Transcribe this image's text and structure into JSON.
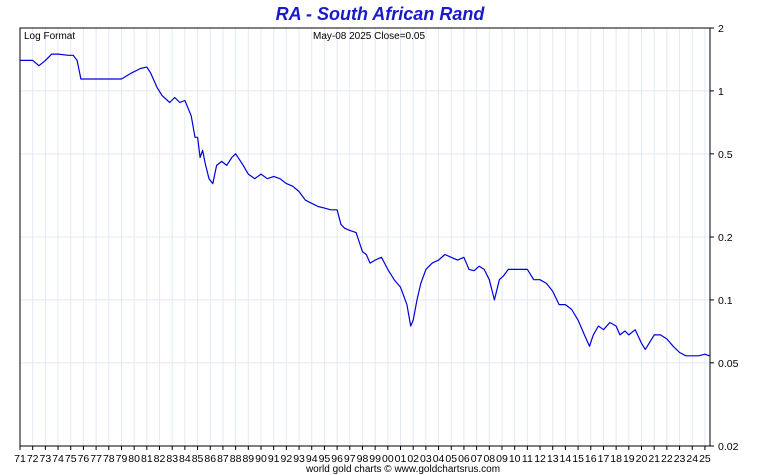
{
  "chart_data": {
    "type": "line",
    "title": "RA  -  South African Rand",
    "scale_label": "Log Format",
    "last_value_label": "May-08  2025   Close=0.05",
    "footer": "world gold charts © www.goldchartsrus.com",
    "yscale": "log",
    "ylim": [
      0.02,
      2
    ],
    "xlim": [
      1971,
      2025.4
    ],
    "y_ticks": [
      {
        "value": 2,
        "label": "2"
      },
      {
        "value": 1,
        "label": "1"
      },
      {
        "value": 0.5,
        "label": "0.5"
      },
      {
        "value": 0.2,
        "label": "0.2"
      },
      {
        "value": 0.1,
        "label": "0.1"
      },
      {
        "value": 0.05,
        "label": "0.05"
      },
      {
        "value": 0.02,
        "label": "0.02"
      }
    ],
    "x_tick_labels": [
      "71",
      "72",
      "73",
      "74",
      "75",
      "76",
      "77",
      "78",
      "79",
      "80",
      "81",
      "82",
      "83",
      "84",
      "85",
      "86",
      "87",
      "88",
      "89",
      "90",
      "91",
      "92",
      "93",
      "94",
      "95",
      "96",
      "97",
      "98",
      "99",
      "00",
      "01",
      "02",
      "03",
      "04",
      "05",
      "06",
      "07",
      "08",
      "09",
      "10",
      "11",
      "12",
      "13",
      "14",
      "15",
      "16",
      "17",
      "18",
      "19",
      "20",
      "21",
      "22",
      "23",
      "24",
      "25"
    ],
    "grid": true,
    "series": [
      {
        "color": "#0000dd",
        "x": [
          1971.0,
          1972.0,
          1972.5,
          1973.0,
          1973.5,
          1974.0,
          1974.8,
          1975.2,
          1975.5,
          1975.8,
          1976.5,
          1977.0,
          1978.0,
          1979.0,
          1979.8,
          1980.5,
          1981.0,
          1981.3,
          1981.8,
          1982.2,
          1982.8,
          1983.2,
          1983.6,
          1984.0,
          1984.5,
          1984.8,
          1985.0,
          1985.2,
          1985.4,
          1985.6,
          1985.9,
          1986.2,
          1986.5,
          1986.9,
          1987.3,
          1987.7,
          1988.0,
          1988.5,
          1989.0,
          1989.5,
          1990.0,
          1990.5,
          1991.0,
          1991.5,
          1992.0,
          1992.5,
          1993.0,
          1993.5,
          1994.0,
          1994.5,
          1995.0,
          1995.5,
          1996.0,
          1996.3,
          1996.6,
          1997.0,
          1997.5,
          1998.0,
          1998.3,
          1998.6,
          1999.0,
          1999.5,
          2000.0,
          2000.5,
          2001.0,
          2001.5,
          2001.8,
          2002.0,
          2002.3,
          2002.6,
          2003.0,
          2003.5,
          2004.0,
          2004.5,
          2005.0,
          2005.5,
          2006.0,
          2006.4,
          2006.8,
          2007.2,
          2007.6,
          2008.0,
          2008.4,
          2008.8,
          2009.1,
          2009.5,
          2010.0,
          2010.5,
          2011.0,
          2011.5,
          2012.0,
          2012.5,
          2013.0,
          2013.5,
          2014.0,
          2014.5,
          2015.0,
          2015.5,
          2015.9,
          2016.2,
          2016.6,
          2017.0,
          2017.5,
          2018.0,
          2018.3,
          2018.7,
          2019.0,
          2019.5,
          2020.0,
          2020.3,
          2020.6,
          2021.0,
          2021.5,
          2022.0,
          2022.5,
          2023.0,
          2023.5,
          2024.0,
          2024.5,
          2025.0,
          2025.35
        ],
        "y": [
          1.4,
          1.4,
          1.32,
          1.4,
          1.5,
          1.5,
          1.48,
          1.48,
          1.4,
          1.14,
          1.14,
          1.14,
          1.14,
          1.14,
          1.22,
          1.28,
          1.3,
          1.22,
          1.04,
          0.95,
          0.88,
          0.93,
          0.88,
          0.9,
          0.76,
          0.6,
          0.6,
          0.48,
          0.52,
          0.45,
          0.38,
          0.36,
          0.44,
          0.46,
          0.44,
          0.48,
          0.5,
          0.45,
          0.4,
          0.38,
          0.4,
          0.38,
          0.39,
          0.38,
          0.36,
          0.35,
          0.33,
          0.3,
          0.29,
          0.28,
          0.275,
          0.27,
          0.27,
          0.23,
          0.22,
          0.215,
          0.21,
          0.17,
          0.165,
          0.15,
          0.155,
          0.16,
          0.14,
          0.125,
          0.115,
          0.095,
          0.075,
          0.08,
          0.1,
          0.12,
          0.14,
          0.15,
          0.155,
          0.165,
          0.16,
          0.155,
          0.16,
          0.14,
          0.138,
          0.145,
          0.14,
          0.125,
          0.1,
          0.125,
          0.13,
          0.14,
          0.14,
          0.14,
          0.14,
          0.125,
          0.125,
          0.12,
          0.11,
          0.095,
          0.095,
          0.09,
          0.08,
          0.068,
          0.06,
          0.068,
          0.075,
          0.072,
          0.078,
          0.075,
          0.068,
          0.071,
          0.068,
          0.072,
          0.062,
          0.058,
          0.062,
          0.068,
          0.068,
          0.065,
          0.06,
          0.056,
          0.054,
          0.054,
          0.054,
          0.055,
          0.054
        ]
      }
    ]
  }
}
